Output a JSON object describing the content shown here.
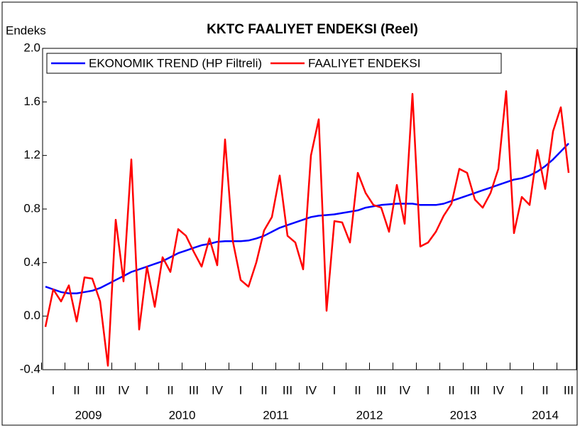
{
  "chart_data": {
    "type": "line",
    "title": "KKTC FAALIYET ENDEKSI (Reel)",
    "y_label": "Endeks",
    "categories": [
      null,
      "I",
      null,
      null,
      "II",
      null,
      null,
      "III",
      null,
      null,
      "IV",
      null,
      null,
      "I",
      null,
      null,
      "II",
      null,
      null,
      "III",
      null,
      null,
      "IV",
      null,
      null,
      "I",
      null,
      null,
      "II",
      null,
      null,
      "III",
      null,
      null,
      "IV",
      null,
      null,
      "I",
      null,
      null,
      "II",
      null,
      null,
      "III",
      null,
      null,
      "IV",
      null,
      null,
      "I",
      null,
      null,
      "II",
      null,
      null,
      "III",
      null,
      null,
      "IV",
      null,
      null,
      "I",
      null,
      null,
      "II",
      null,
      null,
      "III",
      null
    ],
    "years": [
      "2009",
      "2010",
      "2011",
      "2012",
      "2013",
      "2014"
    ],
    "series": [
      {
        "name": "EKONOMIK TREND (HP Filtreli)",
        "color": "#0000ff",
        "values": [
          0.22,
          0.2,
          0.18,
          0.17,
          0.17,
          0.18,
          0.19,
          0.21,
          0.24,
          0.27,
          0.3,
          0.33,
          0.35,
          0.37,
          0.39,
          0.41,
          0.44,
          0.47,
          0.49,
          0.51,
          0.53,
          0.54,
          0.555,
          0.56,
          0.56,
          0.56,
          0.565,
          0.58,
          0.6,
          0.63,
          0.66,
          0.68,
          0.7,
          0.72,
          0.74,
          0.75,
          0.755,
          0.76,
          0.77,
          0.78,
          0.79,
          0.81,
          0.82,
          0.83,
          0.835,
          0.84,
          0.84,
          0.84,
          0.83,
          0.83,
          0.83,
          0.84,
          0.86,
          0.88,
          0.9,
          0.92,
          0.94,
          0.96,
          0.98,
          1.0,
          1.02,
          1.03,
          1.05,
          1.08,
          1.12,
          1.17,
          1.23,
          1.29,
          null
        ]
      },
      {
        "name": "FAALIYET ENDEKSI",
        "color": "#ff0000",
        "values": [
          -0.08,
          0.2,
          0.11,
          0.23,
          -0.04,
          0.29,
          0.28,
          0.11,
          -0.37,
          0.72,
          0.26,
          1.17,
          -0.1,
          0.37,
          0.07,
          0.44,
          0.33,
          0.65,
          0.6,
          0.48,
          0.37,
          0.58,
          0.38,
          1.32,
          0.56,
          0.27,
          0.22,
          0.4,
          0.64,
          0.74,
          1.05,
          0.6,
          0.55,
          0.35,
          1.2,
          1.47,
          0.04,
          0.71,
          0.7,
          0.55,
          1.07,
          0.92,
          0.83,
          0.81,
          0.63,
          0.98,
          0.69,
          1.66,
          0.52,
          0.55,
          0.63,
          0.75,
          0.84,
          1.1,
          1.07,
          0.87,
          0.81,
          0.92,
          1.1,
          1.68,
          0.62,
          0.89,
          0.83,
          1.24,
          0.95,
          1.38,
          1.56,
          1.07,
          null
        ]
      }
    ],
    "ylim": [
      -0.4,
      2.0
    ],
    "yticks": [
      {
        "value": -0.4,
        "label": "-0.4"
      },
      {
        "value": 0,
        "label": "0.0"
      },
      0.4,
      0.8,
      1.2,
      1.6,
      {
        "value": 2,
        "label": "2.0"
      }
    ],
    "grid": false,
    "legend": "upper left"
  }
}
